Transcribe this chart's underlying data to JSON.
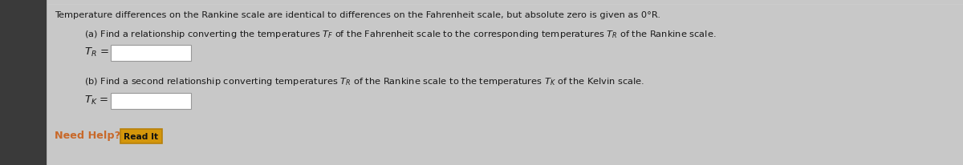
{
  "bg_outer": "#c8c8c8",
  "bg_left_panel": "#3a3a3a",
  "bg_content": "#f5f5f5",
  "bg_top_strip": "#e0e0e0",
  "title_text": "Temperature differences on the Rankine scale are identical to differences on the Fahrenheit scale, but absolute zero is given as 0°R.",
  "part_a": "(a) Find a relationship converting the temperatures $T_F$ of the Fahrenheit scale to the corresponding temperatures $T_R$ of the Rankine scale.",
  "label_a": "$T_R$ =",
  "part_b": "(b) Find a second relationship converting temperatures $T_R$ of the Rankine scale to the temperatures $T_K$ of the Kelvin scale.",
  "label_b": "$T_K$ =",
  "need_help_text": "Need Help?",
  "need_help_color": "#c8692a",
  "read_it_text": "Read It",
  "read_it_bg": "#d4960a",
  "read_it_border": "#b8800a",
  "box_color": "#ffffff",
  "box_border": "#999999",
  "text_color": "#1a1a1a",
  "font_size_title": 8.2,
  "font_size_body": 8.2,
  "font_size_label": 9.5
}
